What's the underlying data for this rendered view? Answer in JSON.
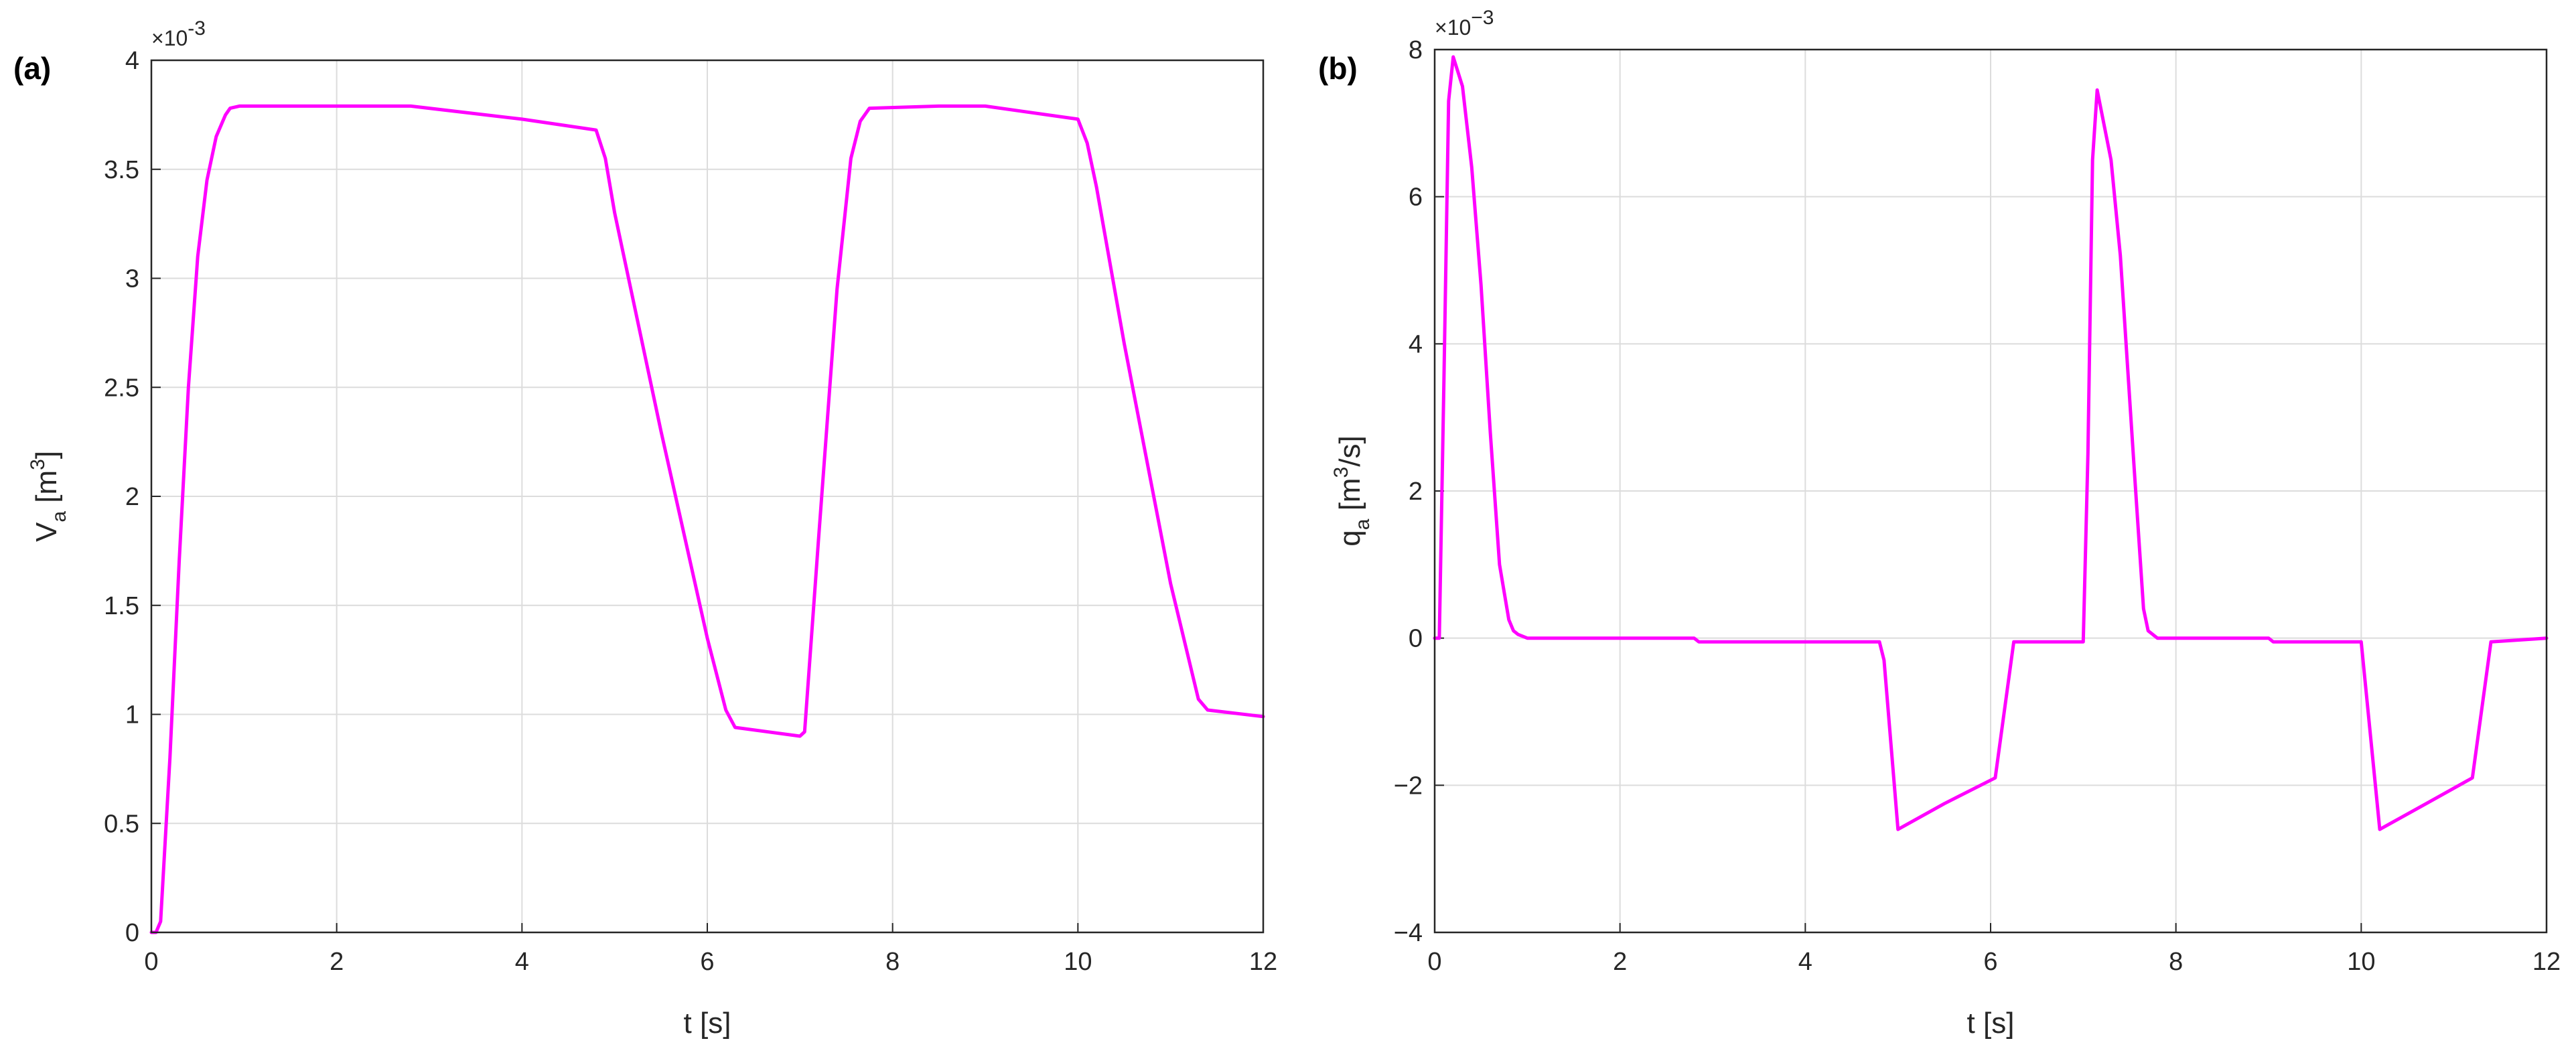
{
  "chart_data": [
    {
      "type": "line",
      "panel": "(a)",
      "xlabel": "t [s]",
      "ylabel": {
        "main": "V",
        "sub": "a",
        "unit_open": " [m",
        "unit_sup": "3",
        "unit_close": "]"
      },
      "multiplier": "×10",
      "multiplier_exp": "-3",
      "xlim": [
        0,
        12
      ],
      "ylim": [
        0,
        4
      ],
      "xticks": [
        0,
        2,
        4,
        6,
        8,
        10,
        12
      ],
      "yticks": [
        0,
        0.5,
        1,
        1.5,
        2,
        2.5,
        3,
        3.5,
        4
      ],
      "ytick_labels": [
        "0",
        "0.5",
        "1",
        "1.5",
        "2",
        "2.5",
        "3",
        "3.5",
        "4"
      ],
      "grid": true,
      "series": [
        {
          "color": "#ff00ff",
          "x": [
            0,
            0.05,
            0.1,
            0.2,
            0.3,
            0.4,
            0.5,
            0.6,
            0.7,
            0.8,
            0.85,
            0.95,
            1.5,
            2.0,
            2.8,
            4.0,
            4.8,
            4.9,
            5.0,
            5.5,
            6.0,
            6.2,
            6.3,
            7.0,
            7.05,
            7.2,
            7.4,
            7.55,
            7.65,
            7.75,
            8.5,
            9.0,
            10.0,
            10.1,
            10.2,
            10.5,
            11.0,
            11.3,
            11.4,
            12.0
          ],
          "y": [
            0,
            0.0,
            0.05,
            0.8,
            1.7,
            2.5,
            3.1,
            3.45,
            3.65,
            3.75,
            3.78,
            3.79,
            3.79,
            3.79,
            3.79,
            3.73,
            3.68,
            3.55,
            3.3,
            2.3,
            1.35,
            1.02,
            0.94,
            0.9,
            0.92,
            1.8,
            2.95,
            3.55,
            3.72,
            3.78,
            3.79,
            3.79,
            3.73,
            3.62,
            3.42,
            2.7,
            1.6,
            1.07,
            1.02,
            0.99
          ]
        }
      ]
    },
    {
      "type": "line",
      "panel": "(b)",
      "xlabel": "t [s]",
      "ylabel": {
        "main": "q",
        "sub": "a",
        "unit_open": " [m",
        "unit_sup": "3",
        "unit_close": "/s]"
      },
      "multiplier": "×10",
      "multiplier_exp": "−3",
      "xlim": [
        0,
        12
      ],
      "ylim": [
        -4,
        8
      ],
      "xticks": [
        0,
        2,
        4,
        6,
        8,
        10,
        12
      ],
      "yticks": [
        -4,
        -2,
        0,
        2,
        4,
        6,
        8
      ],
      "ytick_labels": [
        "−4",
        "−2",
        "0",
        "2",
        "4",
        "6",
        "8"
      ],
      "grid": true,
      "series": [
        {
          "color": "#ff00ff",
          "x": [
            0,
            0.05,
            0.1,
            0.15,
            0.2,
            0.3,
            0.4,
            0.5,
            0.6,
            0.7,
            0.8,
            0.85,
            0.9,
            1.0,
            2.8,
            2.85,
            3.5,
            4.8,
            4.85,
            5.0,
            5.5,
            6.05,
            6.25,
            7.0,
            7.05,
            7.1,
            7.15,
            7.3,
            7.4,
            7.55,
            7.65,
            7.7,
            7.8,
            9.0,
            9.05,
            10.0,
            10.2,
            10.7,
            11.2,
            11.4,
            12.0
          ],
          "y": [
            0,
            0,
            3.5,
            7.3,
            7.9,
            7.5,
            6.4,
            4.8,
            2.8,
            1.0,
            0.25,
            0.1,
            0.05,
            0,
            0,
            -0.05,
            -0.05,
            -0.05,
            -0.3,
            -2.6,
            -2.25,
            -1.9,
            -0.05,
            -0.05,
            2.5,
            6.5,
            7.45,
            6.5,
            5.2,
            2.3,
            0.4,
            0.1,
            0,
            0,
            -0.05,
            -0.05,
            -2.6,
            -2.25,
            -1.9,
            -0.05,
            0
          ]
        }
      ]
    }
  ]
}
